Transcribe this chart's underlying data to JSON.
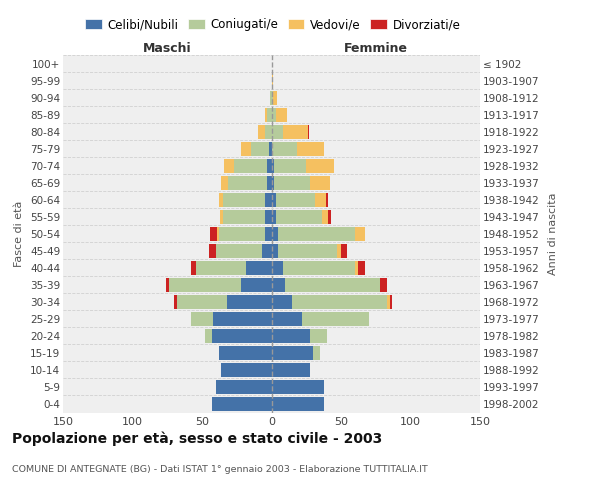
{
  "age_groups": [
    "0-4",
    "5-9",
    "10-14",
    "15-19",
    "20-24",
    "25-29",
    "30-34",
    "35-39",
    "40-44",
    "45-49",
    "50-54",
    "55-59",
    "60-64",
    "65-69",
    "70-74",
    "75-79",
    "80-84",
    "85-89",
    "90-94",
    "95-99",
    "100+"
  ],
  "birth_years": [
    "1998-2002",
    "1993-1997",
    "1988-1992",
    "1983-1987",
    "1978-1982",
    "1973-1977",
    "1968-1972",
    "1963-1967",
    "1958-1962",
    "1953-1957",
    "1948-1952",
    "1943-1947",
    "1938-1942",
    "1933-1937",
    "1928-1932",
    "1923-1927",
    "1918-1922",
    "1913-1917",
    "1908-1912",
    "1903-1907",
    "≤ 1902"
  ],
  "maschi": {
    "celibi": [
      43,
      40,
      36,
      38,
      43,
      42,
      32,
      22,
      18,
      7,
      5,
      5,
      5,
      3,
      3,
      2,
      0,
      0,
      0,
      0,
      0
    ],
    "coniugati": [
      0,
      0,
      0,
      0,
      5,
      16,
      36,
      52,
      36,
      33,
      33,
      30,
      30,
      28,
      24,
      13,
      5,
      3,
      1,
      0,
      0
    ],
    "vedovi": [
      0,
      0,
      0,
      0,
      0,
      0,
      0,
      0,
      0,
      0,
      1,
      2,
      3,
      5,
      7,
      7,
      5,
      2,
      0,
      0,
      0
    ],
    "divorziati": [
      0,
      0,
      0,
      0,
      0,
      0,
      2,
      2,
      4,
      5,
      5,
      0,
      0,
      0,
      0,
      0,
      0,
      0,
      0,
      0,
      0
    ]
  },
  "femmine": {
    "nubili": [
      38,
      38,
      28,
      30,
      28,
      22,
      15,
      10,
      8,
      5,
      5,
      3,
      3,
      2,
      2,
      0,
      0,
      0,
      0,
      0,
      0
    ],
    "coniugate": [
      0,
      0,
      0,
      5,
      12,
      48,
      68,
      68,
      52,
      42,
      55,
      33,
      28,
      26,
      23,
      18,
      8,
      3,
      1,
      0,
      0
    ],
    "vedove": [
      0,
      0,
      0,
      0,
      0,
      0,
      2,
      0,
      2,
      3,
      7,
      5,
      8,
      14,
      20,
      20,
      18,
      8,
      3,
      1,
      0
    ],
    "divorziate": [
      0,
      0,
      0,
      0,
      0,
      0,
      2,
      5,
      5,
      4,
      0,
      2,
      2,
      0,
      0,
      0,
      1,
      0,
      0,
      0,
      0
    ]
  },
  "colors": {
    "celibi": "#4472a8",
    "coniugati": "#b5cb9b",
    "vedovi": "#f5c060",
    "divorziati": "#cc2222"
  },
  "xlim": 150,
  "title": "Popolazione per età, sesso e stato civile - 2003",
  "subtitle": "COMUNE DI ANTEGNATE (BG) - Dati ISTAT 1° gennaio 2003 - Elaborazione TUTTITALIA.IT",
  "ylabel_left": "Fasce di età",
  "ylabel_right": "Anni di nascita",
  "xlabel_maschi": "Maschi",
  "xlabel_femmine": "Femmine",
  "legend_labels": [
    "Celibi/Nubili",
    "Coniugati/e",
    "Vedovi/e",
    "Divorziati/e"
  ],
  "bg_color": "#efefef",
  "grid_color": "#d0d0d0",
  "xticks": [
    150,
    100,
    50,
    0,
    50,
    100,
    150
  ]
}
